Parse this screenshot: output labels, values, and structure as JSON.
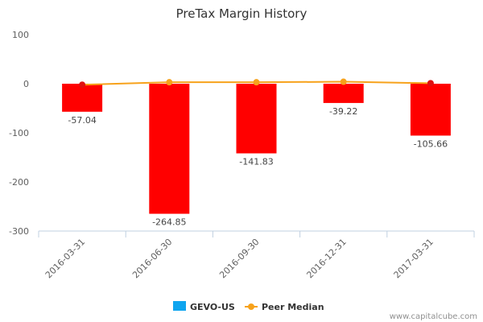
{
  "chart_data": {
    "type": "bar",
    "title": "PreTax Margin History",
    "categories": [
      "2016-03-31",
      "2016-06-30",
      "2016-09-30",
      "2016-12-31",
      "2017-03-31"
    ],
    "y_ticks": [
      "100",
      "0",
      "-100",
      "-200",
      "-300"
    ],
    "ylim": [
      -300,
      100
    ],
    "grid": false,
    "legend_position": "bottom-center",
    "series": [
      {
        "name": "GEVO-US",
        "kind": "bar",
        "values": [
          -57.04,
          -264.85,
          -141.83,
          -39.22,
          -105.66
        ],
        "value_labels": [
          "-57.04",
          "-264.85",
          "-141.83",
          "-39.22",
          "-105.66"
        ],
        "color": "#ff0000",
        "legend_color": "#0fa5ef"
      },
      {
        "name": "Peer Median",
        "kind": "line",
        "values": [
          -2,
          3,
          3,
          4,
          1
        ],
        "color": "#f7a21b",
        "marker_colors": [
          "#e01010",
          "#f7a21b",
          "#f7a21b",
          "#f7a21b",
          "#e01010"
        ]
      }
    ]
  },
  "credit": "www.capitalcube.com"
}
